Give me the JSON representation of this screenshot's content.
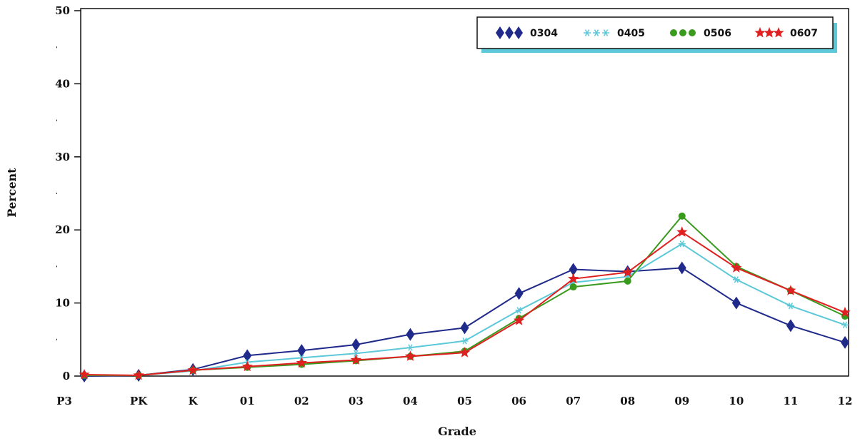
{
  "chart_data": {
    "type": "line",
    "title": "",
    "xlabel": "Grade",
    "ylabel": "Percent",
    "ylim": [
      0,
      50
    ],
    "y_ticks": [
      "0",
      "10",
      "20",
      "30",
      "40",
      "50"
    ],
    "categories": [
      "P3",
      "PK",
      "K",
      "01",
      "02",
      "03",
      "04",
      "05",
      "06",
      "07",
      "08",
      "09",
      "10",
      "11",
      "12"
    ],
    "grid": false,
    "legend_position": "top-right",
    "series": [
      {
        "name": "0304",
        "color": "#1f2a8a",
        "marker": "diamond",
        "values": [
          0.0,
          0.1,
          0.9,
          2.8,
          3.5,
          4.3,
          5.7,
          6.6,
          11.3,
          14.6,
          14.3,
          14.8,
          10.0,
          6.9,
          4.6
        ]
      },
      {
        "name": "0405",
        "color": "#5cc8d8",
        "marker": "asterisk",
        "values": [
          0.1,
          0.1,
          0.7,
          1.9,
          2.5,
          3.1,
          3.9,
          4.8,
          9.0,
          12.8,
          13.6,
          18.1,
          13.2,
          9.6,
          7.0
        ]
      },
      {
        "name": "0506",
        "color": "#3a9a1e",
        "marker": "circle",
        "values": [
          0.1,
          0.1,
          0.8,
          1.2,
          1.6,
          2.1,
          2.7,
          3.4,
          7.9,
          12.2,
          13.0,
          21.9,
          15.0,
          11.7,
          8.2
        ]
      },
      {
        "name": "0607",
        "color": "#e02020",
        "marker": "star",
        "values": [
          0.2,
          0.1,
          0.8,
          1.3,
          1.8,
          2.2,
          2.7,
          3.2,
          7.6,
          13.3,
          14.2,
          19.7,
          14.8,
          11.7,
          8.7
        ]
      }
    ]
  }
}
